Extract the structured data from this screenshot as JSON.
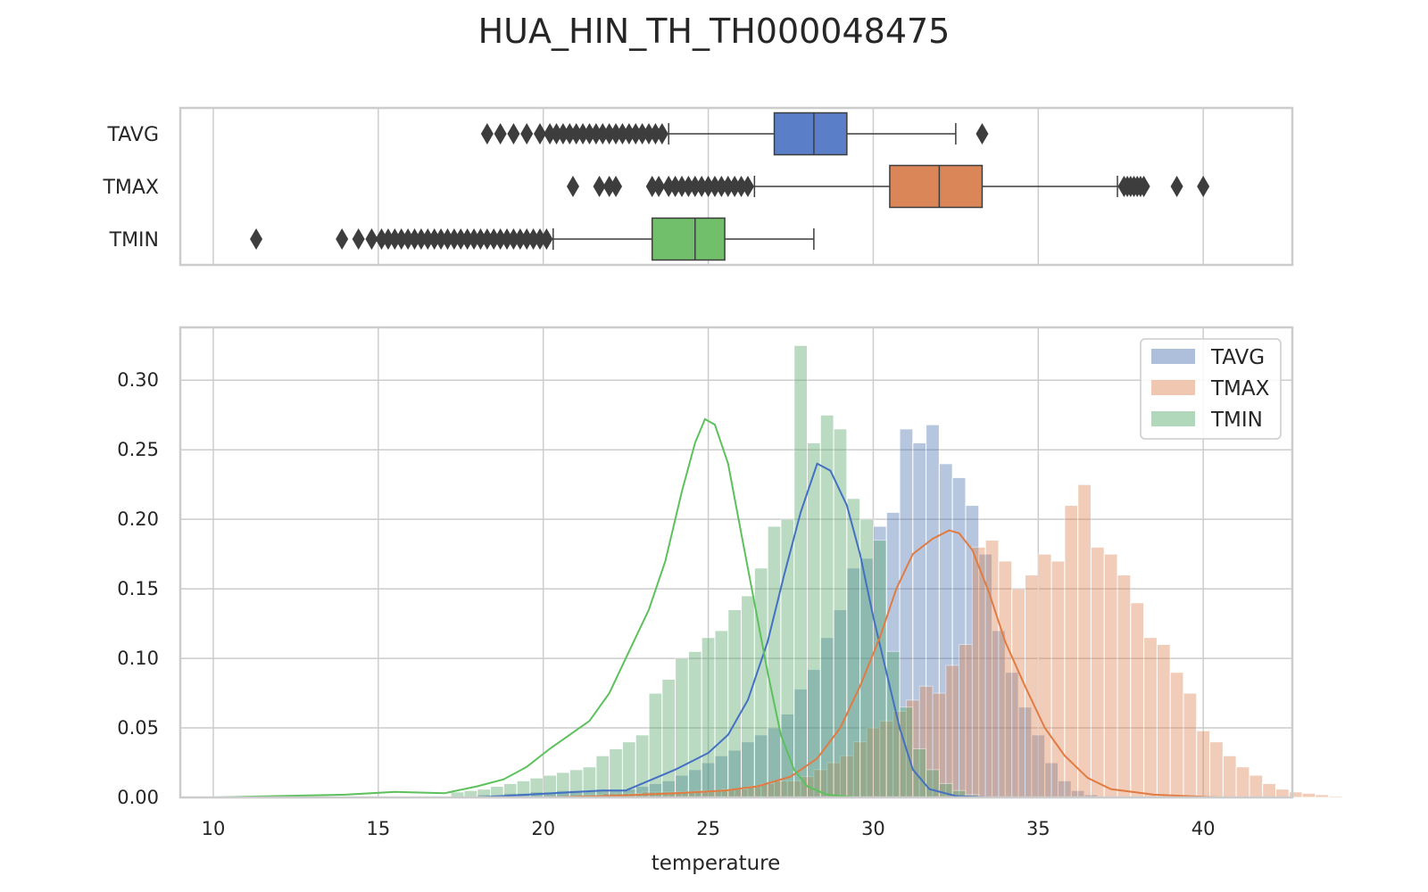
{
  "title": "HUA_HIN_TH_TH000048475",
  "colors": {
    "TAVG": "#4c72b0",
    "TMAX": "#dd8452",
    "TMIN": "#55a868",
    "TAVG_box": "#5a7fc8",
    "TMAX_box": "#da8659",
    "TMIN_box": "#72bf6b",
    "TAVG_kde": "#4470c4",
    "TMAX_kde": "#e07b43",
    "TMIN_kde": "#5cc15c",
    "grid": "#cccccc",
    "outlier": "#3d3d3d"
  },
  "chart_data": [
    {
      "type": "box",
      "categories": [
        "TAVG",
        "TMAX",
        "TMIN"
      ],
      "xlim": [
        9,
        42.7
      ],
      "grid": true,
      "series": [
        {
          "name": "TAVG",
          "q1": 27.0,
          "median": 28.2,
          "q3": 29.2,
          "whisker_low": 23.8,
          "whisker_high": 32.5,
          "outliers_low": [
            18.3,
            18.7,
            19.1,
            19.5,
            19.9,
            20.2,
            20.4,
            20.6,
            20.8,
            21.0,
            21.2,
            21.4,
            21.6,
            21.8,
            22.0,
            22.2,
            22.4,
            22.6,
            22.8,
            23.0,
            23.2,
            23.4,
            23.6
          ],
          "outliers_high": [
            33.3
          ]
        },
        {
          "name": "TMAX",
          "q1": 30.5,
          "median": 32.0,
          "q3": 33.3,
          "whisker_low": 26.4,
          "whisker_high": 37.4,
          "outliers_low": [
            20.9,
            21.7,
            22.0,
            22.2,
            23.3,
            23.5,
            23.8,
            24.0,
            24.2,
            24.4,
            24.6,
            24.8,
            25.0,
            25.2,
            25.4,
            25.6,
            25.8,
            26.0,
            26.2
          ],
          "outliers_high": [
            37.6,
            37.7,
            37.8,
            37.9,
            38.0,
            38.1,
            38.2,
            39.2,
            40.0
          ]
        },
        {
          "name": "TMIN",
          "q1": 23.3,
          "median": 24.6,
          "q3": 25.5,
          "whisker_low": 20.3,
          "whisker_high": 28.2,
          "outliers_low": [
            11.3,
            13.9,
            14.4,
            14.8,
            15.1,
            15.3,
            15.5,
            15.7,
            15.9,
            16.1,
            16.3,
            16.5,
            16.7,
            16.9,
            17.1,
            17.3,
            17.5,
            17.7,
            17.9,
            18.1,
            18.3,
            18.5,
            18.7,
            18.9,
            19.1,
            19.3,
            19.5,
            19.7,
            19.9,
            20.1
          ],
          "outliers_high": []
        }
      ]
    },
    {
      "type": "histogram",
      "xlabel": "temperature",
      "ylabel": "",
      "xlim": [
        9,
        42.7
      ],
      "ylim": [
        0,
        0.338
      ],
      "xticks": [
        10,
        15,
        20,
        25,
        30,
        35,
        40
      ],
      "yticks": [
        0.0,
        0.05,
        0.1,
        0.15,
        0.2,
        0.25,
        0.3
      ],
      "ytick_labels": [
        "0.00",
        "0.05",
        "0.10",
        "0.15",
        "0.20",
        "0.25",
        "0.30"
      ],
      "legend": {
        "position": "top-right",
        "entries": [
          "TAVG",
          "TMAX",
          "TMIN"
        ]
      },
      "series": [
        {
          "name": "TAVG",
          "bin_start": 18.0,
          "bin_width": 0.4,
          "values": [
            0.002,
            0.002,
            0.003,
            0.003,
            0.004,
            0.004,
            0.005,
            0.005,
            0.005,
            0.006,
            0.006,
            0.006,
            0.008,
            0.01,
            0.012,
            0.016,
            0.02,
            0.025,
            0.03,
            0.034,
            0.04,
            0.045,
            0.05,
            0.06,
            0.078,
            0.092,
            0.115,
            0.135,
            0.165,
            0.172,
            0.195,
            0.205,
            0.265,
            0.255,
            0.268,
            0.24,
            0.23,
            0.21,
            0.175,
            0.12,
            0.09,
            0.065,
            0.045,
            0.025,
            0.012,
            0.005,
            0.002
          ]
        },
        {
          "name": "TMAX",
          "bin_start": 21.0,
          "bin_width": 0.4,
          "values": [
            0.002,
            0.002,
            0.003,
            0.003,
            0.003,
            0.004,
            0.004,
            0.004,
            0.004,
            0.005,
            0.005,
            0.006,
            0.006,
            0.008,
            0.01,
            0.012,
            0.012,
            0.015,
            0.02,
            0.025,
            0.03,
            0.04,
            0.05,
            0.055,
            0.062,
            0.07,
            0.08,
            0.075,
            0.095,
            0.11,
            0.18,
            0.185,
            0.17,
            0.15,
            0.16,
            0.175,
            0.17,
            0.21,
            0.225,
            0.18,
            0.175,
            0.16,
            0.14,
            0.115,
            0.11,
            0.09,
            0.075,
            0.048,
            0.04,
            0.03,
            0.022,
            0.016,
            0.01,
            0.006,
            0.004,
            0.003,
            0.002,
            0.001
          ]
        },
        {
          "name": "TMIN",
          "bin_start": 17.2,
          "bin_width": 0.4,
          "values": [
            0.004,
            0.005,
            0.006,
            0.008,
            0.01,
            0.012,
            0.014,
            0.016,
            0.018,
            0.02,
            0.022,
            0.03,
            0.035,
            0.04,
            0.045,
            0.075,
            0.085,
            0.1,
            0.105,
            0.115,
            0.12,
            0.135,
            0.145,
            0.165,
            0.195,
            0.2,
            0.325,
            0.255,
            0.275,
            0.265,
            0.215,
            0.2,
            0.185,
            0.105,
            0.065,
            0.035,
            0.02,
            0.01,
            0.005,
            0.002
          ]
        }
      ],
      "kde": [
        {
          "name": "TAVG",
          "points": [
            [
              18,
              0
            ],
            [
              19.5,
              0.002
            ],
            [
              21,
              0.004
            ],
            [
              21.8,
              0.005
            ],
            [
              22.5,
              0.005
            ],
            [
              23.2,
              0.012
            ],
            [
              24,
              0.02
            ],
            [
              25,
              0.032
            ],
            [
              25.6,
              0.045
            ],
            [
              26.2,
              0.07
            ],
            [
              26.8,
              0.112
            ],
            [
              27.3,
              0.16
            ],
            [
              27.8,
              0.205
            ],
            [
              28.3,
              0.24
            ],
            [
              28.7,
              0.235
            ],
            [
              29.2,
              0.21
            ],
            [
              29.6,
              0.175
            ],
            [
              30.0,
              0.13
            ],
            [
              30.4,
              0.09
            ],
            [
              30.8,
              0.05
            ],
            [
              31.2,
              0.02
            ],
            [
              31.7,
              0.006
            ],
            [
              32.5,
              0.001
            ],
            [
              33.5,
              0
            ]
          ]
        },
        {
          "name": "TMAX",
          "points": [
            [
              20,
              0
            ],
            [
              22,
              0.001
            ],
            [
              24,
              0.003
            ],
            [
              25.5,
              0.005
            ],
            [
              26.5,
              0.008
            ],
            [
              27.5,
              0.015
            ],
            [
              28.3,
              0.028
            ],
            [
              29.0,
              0.05
            ],
            [
              29.6,
              0.08
            ],
            [
              30.2,
              0.115
            ],
            [
              30.7,
              0.15
            ],
            [
              31.2,
              0.175
            ],
            [
              31.8,
              0.186
            ],
            [
              32.3,
              0.192
            ],
            [
              32.6,
              0.19
            ],
            [
              33.0,
              0.178
            ],
            [
              33.5,
              0.148
            ],
            [
              34.0,
              0.112
            ],
            [
              34.6,
              0.08
            ],
            [
              35.2,
              0.05
            ],
            [
              35.8,
              0.03
            ],
            [
              36.5,
              0.014
            ],
            [
              37.2,
              0.006
            ],
            [
              38.5,
              0.002
            ],
            [
              40.5,
              0
            ]
          ]
        },
        {
          "name": "TMIN",
          "points": [
            [
              10,
              0
            ],
            [
              12,
              0.001
            ],
            [
              14,
              0.002
            ],
            [
              15.5,
              0.004
            ],
            [
              17,
              0.003
            ],
            [
              18,
              0.008
            ],
            [
              18.8,
              0.013
            ],
            [
              19.5,
              0.022
            ],
            [
              20.2,
              0.035
            ],
            [
              20.8,
              0.045
            ],
            [
              21.4,
              0.055
            ],
            [
              22.0,
              0.075
            ],
            [
              22.6,
              0.105
            ],
            [
              23.2,
              0.135
            ],
            [
              23.7,
              0.17
            ],
            [
              24.2,
              0.22
            ],
            [
              24.6,
              0.255
            ],
            [
              24.9,
              0.272
            ],
            [
              25.2,
              0.268
            ],
            [
              25.6,
              0.24
            ],
            [
              26.0,
              0.19
            ],
            [
              26.4,
              0.14
            ],
            [
              26.8,
              0.09
            ],
            [
              27.2,
              0.045
            ],
            [
              27.6,
              0.02
            ],
            [
              28.0,
              0.008
            ],
            [
              28.6,
              0.002
            ],
            [
              29.5,
              0
            ]
          ]
        }
      ]
    }
  ]
}
